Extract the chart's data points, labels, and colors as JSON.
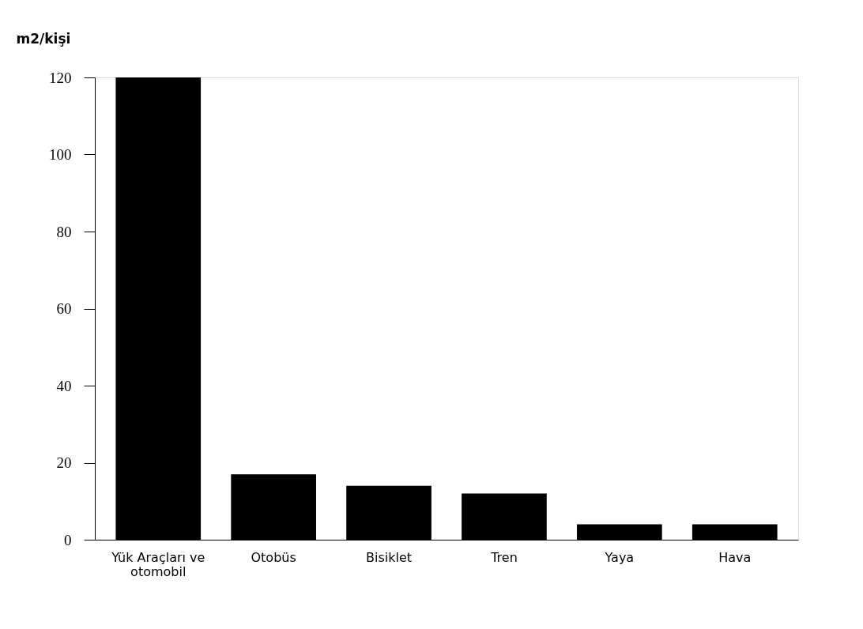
{
  "chart_data": {
    "type": "bar",
    "ylabel": "m2/kişi",
    "categories": [
      "Yük Araçları ve otomobil",
      "Otobüs",
      "Bisiklet",
      "Tren",
      "Yaya",
      "Hava"
    ],
    "values": [
      120,
      17,
      14,
      12,
      4,
      4
    ],
    "color": "#000000",
    "ylim": [
      0,
      120
    ],
    "yticks": [
      0,
      20,
      40,
      60,
      80,
      100,
      120
    ],
    "grid": false
  }
}
